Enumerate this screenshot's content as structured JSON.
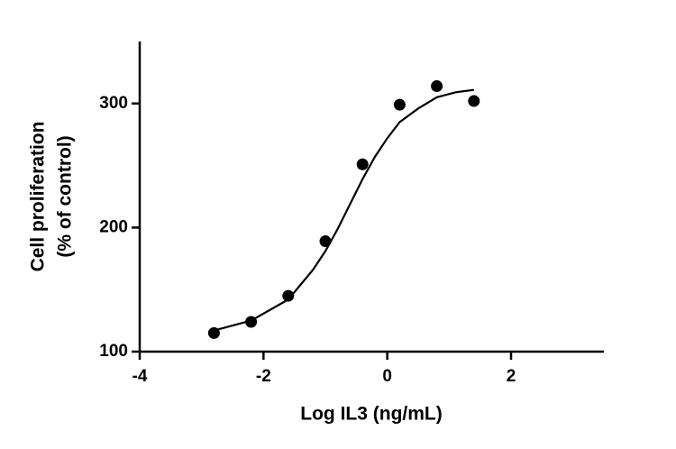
{
  "chart_data": {
    "type": "scatter",
    "xlabel": "Log IL3 (ng/mL)",
    "ylabel": [
      "Cell proliferation",
      "(% of control)"
    ],
    "xlim": [
      -4,
      3.5
    ],
    "xticks": [
      -4,
      -2,
      0,
      2
    ],
    "ylim": [
      100,
      350
    ],
    "yticks": [
      100,
      200,
      300
    ],
    "series": [
      {
        "type": "scatter",
        "color": "#000000",
        "x": [
          -2.8,
          -2.2,
          -1.6,
          -1.0,
          -0.4,
          0.2,
          0.8,
          1.4
        ],
        "values": [
          115,
          124,
          145,
          189,
          251,
          299,
          314,
          302
        ]
      },
      {
        "type": "line",
        "color": "#000000",
        "x": [
          -2.8,
          -2.2,
          -1.6,
          -1.2,
          -1.0,
          -0.8,
          -0.6,
          -0.4,
          -0.2,
          0,
          0.2,
          0.5,
          0.8,
          1.1,
          1.4
        ],
        "values": [
          117,
          125,
          142,
          166,
          181,
          199,
          219,
          239,
          257,
          272,
          285,
          296,
          305,
          309,
          311
        ]
      }
    ]
  }
}
